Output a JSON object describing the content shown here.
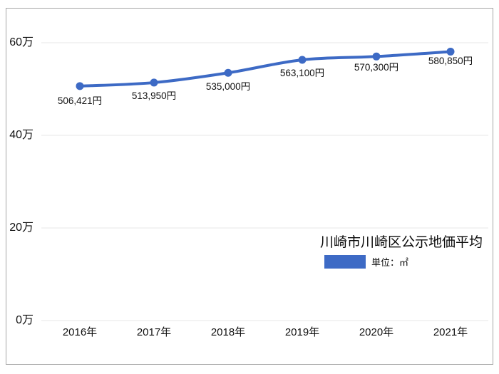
{
  "chart_data": {
    "type": "line",
    "title": "川崎市川崎区公示地価平均",
    "legend": {
      "label": "単位：㎡",
      "position": "inside-right"
    },
    "categories": [
      "2016年",
      "2017年",
      "2018年",
      "2019年",
      "2020年",
      "2021年"
    ],
    "series": [
      {
        "name": "川崎市川崎区公示地価平均",
        "values": [
          506421,
          513950,
          535000,
          563100,
          570300,
          580850
        ],
        "data_labels": [
          "506,421円",
          "513,950円",
          "535,000円",
          "563,100円",
          "570,300円",
          "580,850円"
        ]
      }
    ],
    "xlabel": "",
    "ylabel": "",
    "y_ticks": [
      {
        "value": 0,
        "label": "0万"
      },
      {
        "value": 200000,
        "label": "20万"
      },
      {
        "value": 400000,
        "label": "40万"
      },
      {
        "value": 600000,
        "label": "60万"
      }
    ],
    "ylim": [
      0,
      660000
    ],
    "grid": true,
    "colors": {
      "line": "#3D6AC5",
      "point": "#3D6AC5",
      "gridline": "#ececec",
      "border": "#a6a6a6",
      "text": "#111111"
    }
  }
}
